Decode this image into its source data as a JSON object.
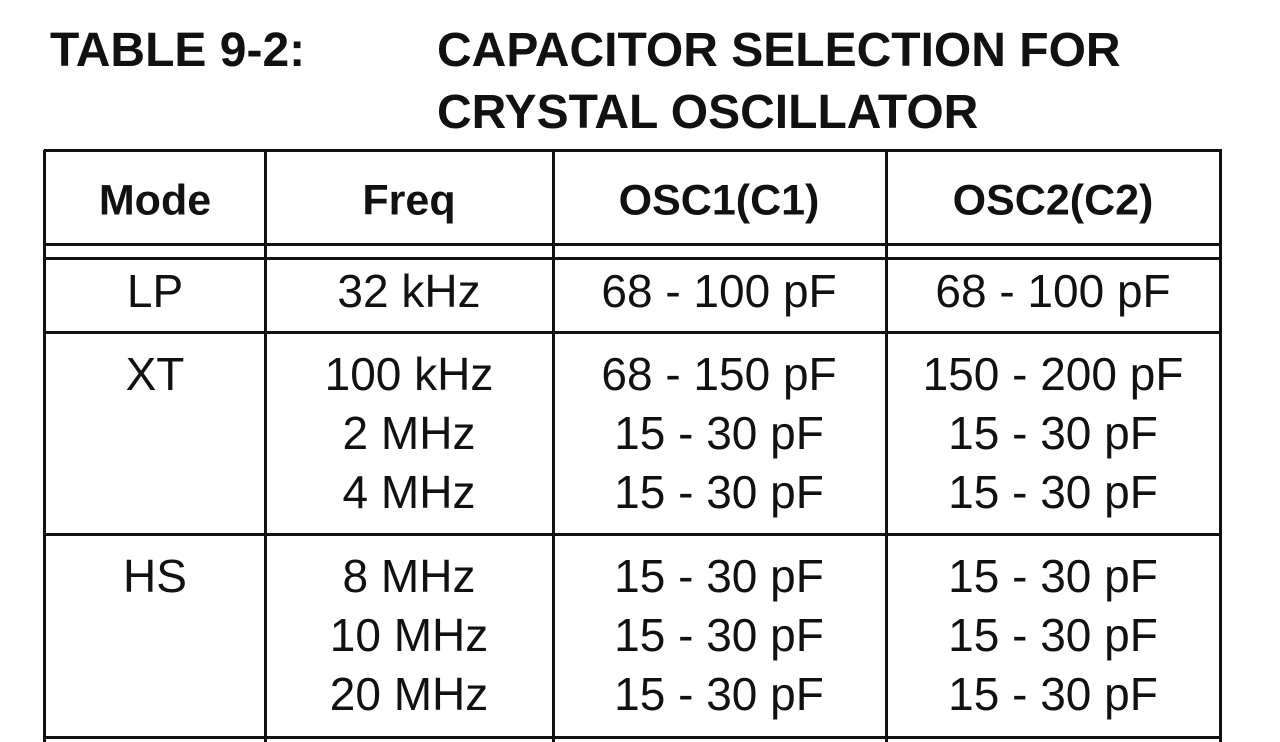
{
  "title": {
    "label": "TABLE 9-2:",
    "lines": [
      "CAPACITOR SELECTION FOR",
      "CRYSTAL OSCILLATOR"
    ]
  },
  "table": {
    "header": [
      "Mode",
      "Freq",
      "OSC1(C1)",
      "OSC2(C2)"
    ],
    "groups": [
      {
        "mode": "LP",
        "rows": [
          [
            "32 kHz",
            "68 - 100 pF",
            "68 - 100 pF"
          ]
        ]
      },
      {
        "mode": "XT",
        "rows": [
          [
            "100 kHz",
            "68 - 150 pF",
            "150 - 200 pF"
          ],
          [
            "2 MHz",
            "15 - 30 pF",
            "15 - 30 pF"
          ],
          [
            "4 MHz",
            "15 - 30 pF",
            "15 - 30 pF"
          ]
        ]
      },
      {
        "mode": "HS",
        "rows": [
          [
            "8 MHz",
            "15 - 30 pF",
            "15 - 30 pF"
          ],
          [
            "10 MHz",
            "15 - 30 pF",
            "15 - 30 pF"
          ],
          [
            "20 MHz",
            "15 - 30 pF",
            "15 - 30 pF"
          ]
        ]
      }
    ]
  }
}
